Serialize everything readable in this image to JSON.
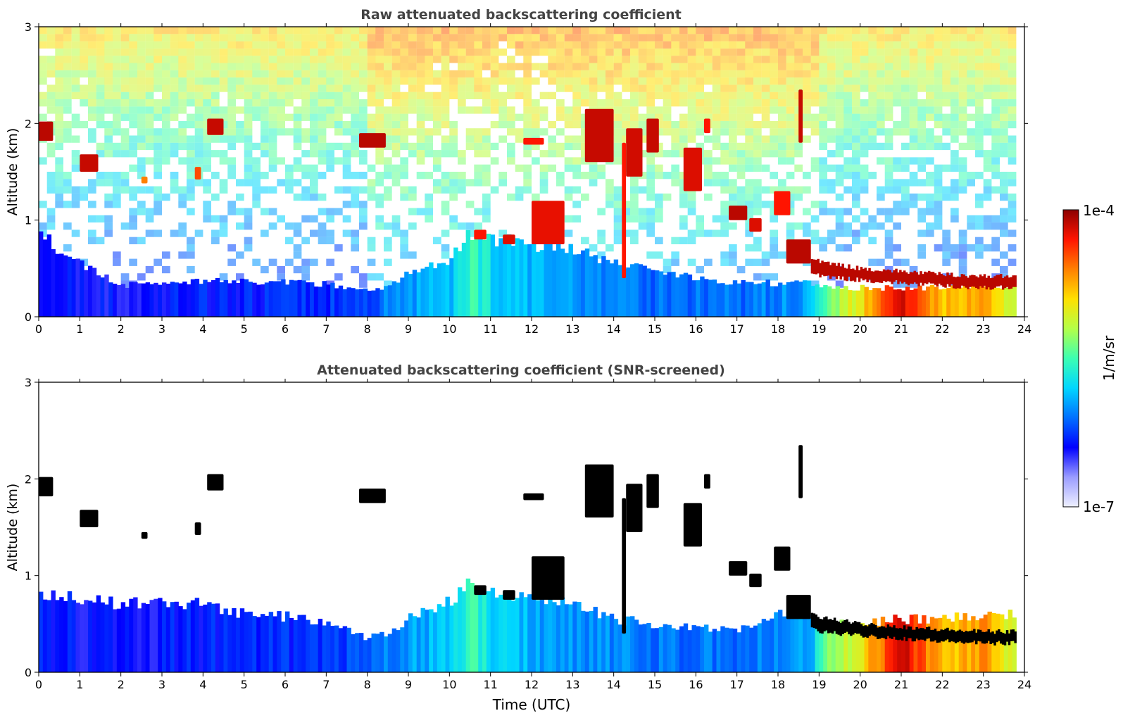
{
  "figure": {
    "colorbar": {
      "label": "1/m/sr",
      "max_label": "1e-4",
      "min_label": "1e-7",
      "scale": "log",
      "colormap": "jet-like (white → blue → cyan → green → yellow → orange → dark red)",
      "color_stops": [
        "#eef0ff",
        "#9a9cff",
        "#0000ff",
        "#0070ff",
        "#00d6ff",
        "#3cffb2",
        "#b4ff48",
        "#ffe000",
        "#ff8000",
        "#ff1400",
        "#8c0000"
      ]
    },
    "xlabel": "Time (UTC)"
  },
  "chart_data": [
    {
      "type": "heatmap",
      "title": "Raw attenuated backscattering coefficient",
      "xlabel": "",
      "ylabel": "Altitude (km)",
      "xlim": [
        0,
        24
      ],
      "ylim": [
        0,
        3
      ],
      "xticks": [
        "0",
        "1",
        "2",
        "3",
        "4",
        "5",
        "6",
        "7",
        "8",
        "9",
        "10",
        "11",
        "12",
        "13",
        "14",
        "15",
        "16",
        "17",
        "18",
        "19",
        "20",
        "21",
        "22",
        "23",
        "24"
      ],
      "yticks": [
        "0",
        "1",
        "2",
        "3"
      ],
      "boundary_layer": {
        "x": [
          0,
          1,
          2,
          3,
          4,
          5,
          6,
          7,
          8,
          8.5,
          9,
          10,
          10.5,
          11,
          12,
          13,
          14,
          15,
          16,
          17,
          18,
          18.8,
          19,
          20,
          21,
          22,
          23,
          23.8
        ],
        "top_km": [
          0.85,
          0.55,
          0.32,
          0.35,
          0.38,
          0.36,
          0.36,
          0.34,
          0.28,
          0.3,
          0.45,
          0.6,
          0.85,
          0.8,
          0.75,
          0.72,
          0.55,
          0.5,
          0.4,
          0.35,
          0.35,
          0.35,
          0.3,
          0.3,
          0.3,
          0.3,
          0.3,
          0.3
        ],
        "level": [
          0.22,
          0.2,
          0.2,
          0.21,
          0.22,
          0.22,
          0.23,
          0.24,
          0.26,
          0.32,
          0.34,
          0.38,
          0.5,
          0.42,
          0.36,
          0.34,
          0.33,
          0.3,
          0.3,
          0.3,
          0.32,
          0.35,
          0.5,
          0.68,
          0.95,
          0.72,
          0.78,
          0.6
        ]
      },
      "cloud_layer": {
        "x": [
          18.8,
          19,
          20,
          21,
          22,
          23,
          23.8
        ],
        "base_km": [
          0.45,
          0.42,
          0.38,
          0.35,
          0.32,
          0.3,
          0.3
        ],
        "thickness_km": [
          0.15,
          0.15,
          0.12,
          0.12,
          0.12,
          0.12,
          0.12
        ],
        "level": 0.96
      },
      "clouds": [
        {
          "t0": 0.0,
          "t1": 0.35,
          "z0": 1.82,
          "z1": 2.02,
          "level": 0.96
        },
        {
          "t0": 1.0,
          "t1": 1.45,
          "z0": 1.5,
          "z1": 1.68,
          "level": 0.95
        },
        {
          "t0": 2.5,
          "t1": 2.65,
          "z0": 1.38,
          "z1": 1.45,
          "level": 0.8
        },
        {
          "t0": 3.8,
          "t1": 3.95,
          "z0": 1.42,
          "z1": 1.55,
          "level": 0.85
        },
        {
          "t0": 4.1,
          "t1": 4.5,
          "z0": 1.88,
          "z1": 2.05,
          "level": 0.95
        },
        {
          "t0": 7.8,
          "t1": 8.45,
          "z0": 1.75,
          "z1": 1.9,
          "level": 0.96
        },
        {
          "t0": 11.8,
          "t1": 12.3,
          "z0": 1.78,
          "z1": 1.85,
          "level": 0.9
        },
        {
          "t0": 13.3,
          "t1": 14.0,
          "z0": 1.6,
          "z1": 2.15,
          "level": 0.95
        },
        {
          "t0": 14.2,
          "t1": 14.3,
          "z0": 0.4,
          "z1": 1.8,
          "level": 0.9
        },
        {
          "t0": 14.3,
          "t1": 14.7,
          "z0": 1.45,
          "z1": 1.95,
          "level": 0.94
        },
        {
          "t0": 14.8,
          "t1": 15.1,
          "z0": 1.7,
          "z1": 2.05,
          "level": 0.95
        },
        {
          "t0": 15.7,
          "t1": 16.15,
          "z0": 1.3,
          "z1": 1.75,
          "level": 0.93
        },
        {
          "t0": 16.2,
          "t1": 16.35,
          "z0": 1.9,
          "z1": 2.05,
          "level": 0.9
        },
        {
          "t0": 16.8,
          "t1": 17.25,
          "z0": 1.0,
          "z1": 1.15,
          "level": 0.96
        },
        {
          "t0": 17.3,
          "t1": 17.6,
          "z0": 0.88,
          "z1": 1.02,
          "level": 0.93
        },
        {
          "t0": 17.9,
          "t1": 18.3,
          "z0": 1.05,
          "z1": 1.3,
          "level": 0.9
        },
        {
          "t0": 18.5,
          "t1": 18.6,
          "z0": 1.8,
          "z1": 2.35,
          "level": 0.95
        },
        {
          "t0": 11.3,
          "t1": 11.6,
          "z0": 0.75,
          "z1": 0.85,
          "level": 0.93
        },
        {
          "t0": 12.0,
          "t1": 12.8,
          "z0": 0.75,
          "z1": 1.2,
          "level": 0.92
        },
        {
          "t0": 10.6,
          "t1": 10.9,
          "z0": 0.8,
          "z1": 0.9,
          "level": 0.9
        },
        {
          "t0": 18.2,
          "t1": 18.8,
          "z0": 0.55,
          "z1": 0.8,
          "level": 0.96
        }
      ]
    },
    {
      "type": "heatmap",
      "title": "Attenuated backscattering coefficient (SNR-screened)",
      "xlabel": "Time (UTC)",
      "ylabel": "Altitude (km)",
      "xlim": [
        0,
        24
      ],
      "ylim": [
        0,
        3
      ],
      "xticks": [
        "0",
        "1",
        "2",
        "3",
        "4",
        "5",
        "6",
        "7",
        "8",
        "9",
        "10",
        "11",
        "12",
        "13",
        "14",
        "15",
        "16",
        "17",
        "18",
        "19",
        "20",
        "21",
        "22",
        "23",
        "24"
      ],
      "yticks": [
        "0",
        "1",
        "2",
        "3"
      ],
      "boundary_layer": {
        "x": [
          0,
          1,
          2,
          3,
          4,
          5,
          6,
          7,
          8,
          8.5,
          9,
          10,
          10.5,
          11,
          12,
          13,
          14,
          15,
          16,
          17,
          18,
          18.8,
          19,
          20,
          21,
          22,
          23,
          23.8
        ],
        "top_km": [
          0.85,
          0.75,
          0.7,
          0.72,
          0.7,
          0.6,
          0.58,
          0.52,
          0.35,
          0.4,
          0.55,
          0.75,
          0.9,
          0.8,
          0.75,
          0.7,
          0.55,
          0.5,
          0.45,
          0.45,
          0.6,
          0.6,
          0.5,
          0.5,
          0.55,
          0.55,
          0.6,
          0.6
        ],
        "level": [
          0.22,
          0.2,
          0.2,
          0.21,
          0.22,
          0.22,
          0.23,
          0.24,
          0.26,
          0.32,
          0.34,
          0.38,
          0.5,
          0.42,
          0.36,
          0.34,
          0.33,
          0.3,
          0.3,
          0.3,
          0.32,
          0.35,
          0.5,
          0.68,
          0.95,
          0.72,
          0.78,
          0.6
        ]
      },
      "cloud_layer": {
        "x": [
          18.8,
          19,
          20,
          21,
          22,
          23,
          23.8
        ],
        "base_km": [
          0.45,
          0.42,
          0.38,
          0.35,
          0.32,
          0.3,
          0.3
        ],
        "thickness_km": [
          0.15,
          0.15,
          0.12,
          0.12,
          0.12,
          0.12,
          0.12
        ],
        "level": 1.0
      },
      "clouds": [
        {
          "t0": 0.0,
          "t1": 0.35,
          "z0": 1.82,
          "z1": 2.02,
          "level": 1.0
        },
        {
          "t0": 1.0,
          "t1": 1.45,
          "z0": 1.5,
          "z1": 1.68,
          "level": 1.0
        },
        {
          "t0": 2.5,
          "t1": 2.65,
          "z0": 1.38,
          "z1": 1.45,
          "level": 1.0
        },
        {
          "t0": 3.8,
          "t1": 3.95,
          "z0": 1.42,
          "z1": 1.55,
          "level": 1.0
        },
        {
          "t0": 4.1,
          "t1": 4.5,
          "z0": 1.88,
          "z1": 2.05,
          "level": 1.0
        },
        {
          "t0": 7.8,
          "t1": 8.45,
          "z0": 1.75,
          "z1": 1.9,
          "level": 1.0
        },
        {
          "t0": 11.8,
          "t1": 12.3,
          "z0": 1.78,
          "z1": 1.85,
          "level": 1.0
        },
        {
          "t0": 13.3,
          "t1": 14.0,
          "z0": 1.6,
          "z1": 2.15,
          "level": 1.0
        },
        {
          "t0": 14.2,
          "t1": 14.3,
          "z0": 0.4,
          "z1": 1.8,
          "level": 1.0
        },
        {
          "t0": 14.3,
          "t1": 14.7,
          "z0": 1.45,
          "z1": 1.95,
          "level": 1.0
        },
        {
          "t0": 14.8,
          "t1": 15.1,
          "z0": 1.7,
          "z1": 2.05,
          "level": 1.0
        },
        {
          "t0": 15.7,
          "t1": 16.15,
          "z0": 1.3,
          "z1": 1.75,
          "level": 1.0
        },
        {
          "t0": 16.2,
          "t1": 16.35,
          "z0": 1.9,
          "z1": 2.05,
          "level": 1.0
        },
        {
          "t0": 16.8,
          "t1": 17.25,
          "z0": 1.0,
          "z1": 1.15,
          "level": 1.0
        },
        {
          "t0": 17.3,
          "t1": 17.6,
          "z0": 0.88,
          "z1": 1.02,
          "level": 1.0
        },
        {
          "t0": 17.9,
          "t1": 18.3,
          "z0": 1.05,
          "z1": 1.3,
          "level": 1.0
        },
        {
          "t0": 18.5,
          "t1": 18.6,
          "z0": 1.8,
          "z1": 2.35,
          "level": 1.0
        },
        {
          "t0": 11.3,
          "t1": 11.6,
          "z0": 0.75,
          "z1": 0.85,
          "level": 1.0
        },
        {
          "t0": 12.0,
          "t1": 12.8,
          "z0": 0.75,
          "z1": 1.2,
          "level": 1.0
        },
        {
          "t0": 10.6,
          "t1": 10.9,
          "z0": 0.8,
          "z1": 0.9,
          "level": 1.0
        },
        {
          "t0": 18.2,
          "t1": 18.8,
          "z0": 0.55,
          "z1": 0.8,
          "level": 1.0
        }
      ]
    }
  ]
}
